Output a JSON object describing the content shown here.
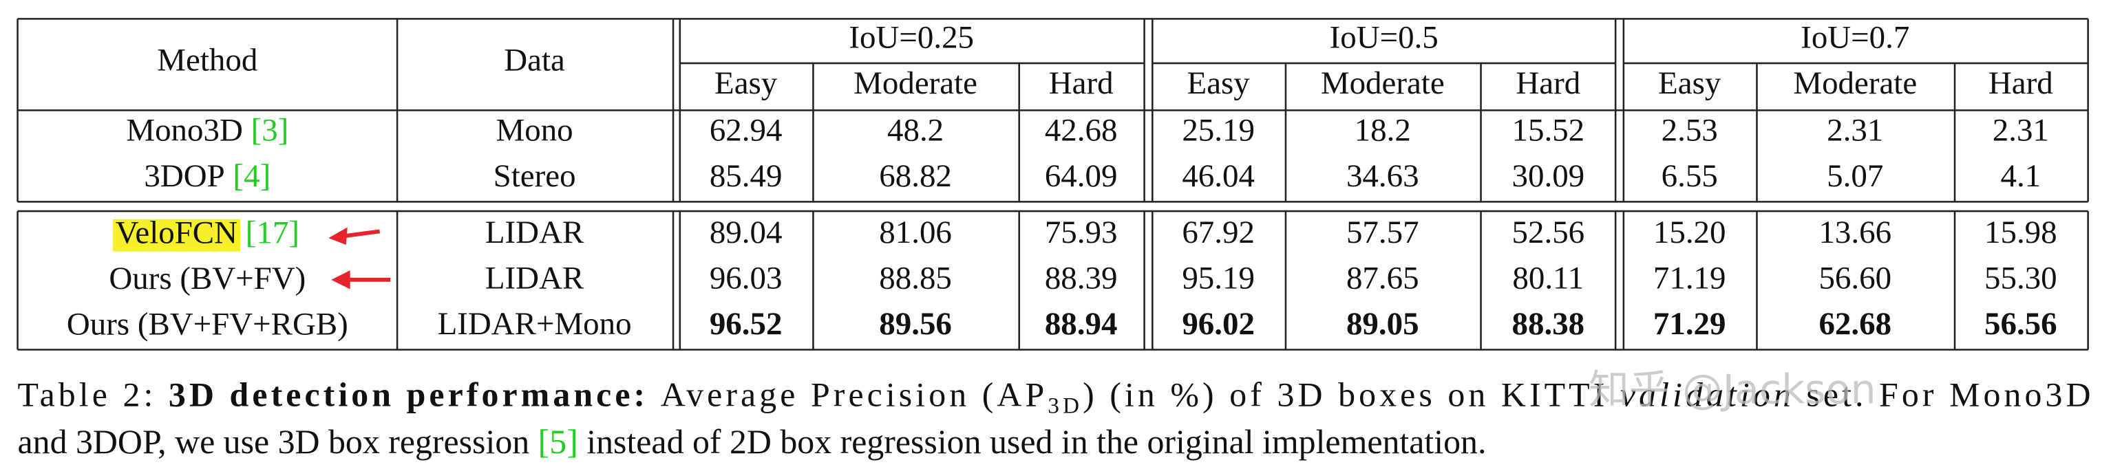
{
  "table": {
    "columns": [
      "Method",
      "Data"
    ],
    "group_headers": [
      "IoU=0.25",
      "IoU=0.5",
      "IoU=0.7"
    ],
    "subheaders": [
      "Easy",
      "Moderate",
      "Hard"
    ],
    "rows": [
      {
        "method": "Mono3D",
        "citation": "[3]",
        "data": "Mono",
        "values": [
          "62.94",
          "48.2",
          "42.68",
          "25.19",
          "18.2",
          "15.52",
          "2.53",
          "2.31",
          "2.31"
        ]
      },
      {
        "method": "3DOP",
        "citation": "[4]",
        "data": "Stereo",
        "values": [
          "85.49",
          "68.82",
          "64.09",
          "46.04",
          "34.63",
          "30.09",
          "6.55",
          "5.07",
          "4.1"
        ]
      },
      {
        "method": "VeloFCN",
        "citation": "[17]",
        "highlight": "#f6f02a",
        "data": "LIDAR",
        "values": [
          "89.04",
          "81.06",
          "75.93",
          "67.92",
          "57.57",
          "52.56",
          "15.20",
          "13.66",
          "15.98"
        ]
      },
      {
        "method": "Ours (BV+FV)",
        "data": "LIDAR",
        "values": [
          "96.03",
          "88.85",
          "88.39",
          "95.19",
          "87.65",
          "80.11",
          "71.19",
          "56.60",
          "55.30"
        ]
      },
      {
        "method": "Ours (BV+FV+RGB)",
        "data": "LIDAR+Mono",
        "bold": true,
        "values": [
          "96.52",
          "89.56",
          "88.94",
          "96.02",
          "89.05",
          "88.38",
          "71.29",
          "62.68",
          "56.56"
        ]
      }
    ],
    "citation_color": "#22cc22"
  },
  "caption": {
    "label": "Table 2:",
    "bold": "3D detection performance:",
    "text1": "Average Precision (AP",
    "subscript": "3D",
    "text2": ") (in %) of 3D boxes on KITTI",
    "italic": "validation",
    "text3": "set. For Mono3D",
    "line2a": "and 3DOP, we use 3D box regression",
    "citation": "[5]",
    "line2b": "instead of 2D box regression used in the original implementation."
  },
  "watermark": "知乎 @Jackson"
}
